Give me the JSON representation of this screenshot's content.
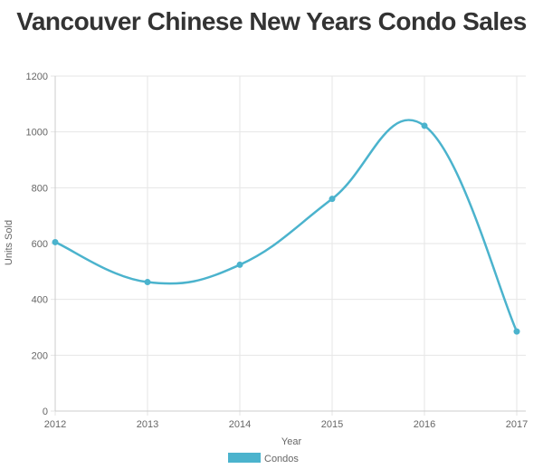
{
  "chart_data": {
    "type": "line",
    "title": "Vancouver Chinese New Years Condo Sales",
    "xlabel": "Year",
    "ylabel": "Units Sold",
    "x": [
      "2012",
      "2013",
      "2014",
      "2015",
      "2016",
      "2017"
    ],
    "yticks": [
      "0",
      "200",
      "400",
      "600",
      "800",
      "1000",
      "1200"
    ],
    "ylim": [
      0,
      1200
    ],
    "grid": true,
    "legend_position": "bottom",
    "series": [
      {
        "name": "Condos",
        "color": "#4bb3cd",
        "values": [
          605,
          462,
          524,
          760,
          1022,
          285
        ]
      }
    ]
  }
}
